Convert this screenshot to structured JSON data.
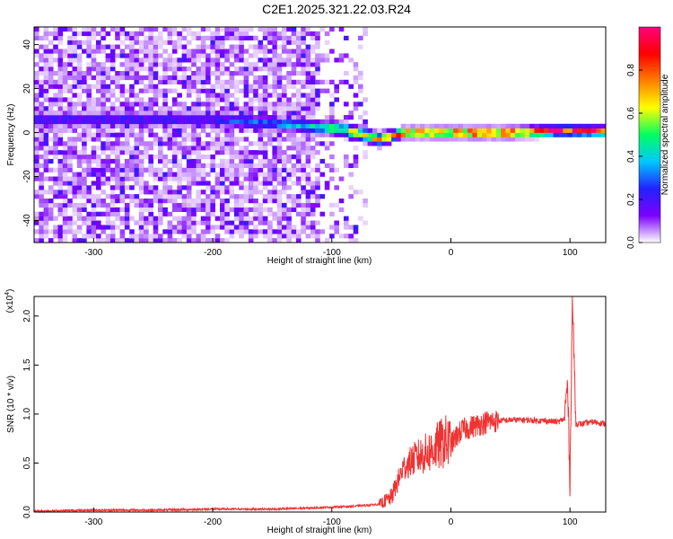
{
  "title": "C2E1.2025.321.22.03.R24",
  "chart_data": [
    {
      "type": "heatmap",
      "title": "C2E1.2025.321.22.03.R24",
      "xlabel": "Height of straight line (km)",
      "ylabel": "Frequency (Hz)",
      "xlim": [
        -350,
        130
      ],
      "ylim": [
        -50,
        48
      ],
      "xticks": [
        -300,
        -200,
        -100,
        0,
        100
      ],
      "yticks": [
        -40,
        -20,
        0,
        20,
        40
      ],
      "colorbar": {
        "label": "Normalized spectral amplitude",
        "range": [
          0,
          1
        ],
        "ticks": [
          "0.0",
          "0.2",
          "0.4",
          "0.6",
          "0.8"
        ],
        "colors": [
          "#ffffff",
          "#7b00ff",
          "#2222ff",
          "#00c8ff",
          "#00ff60",
          "#ffff00",
          "#ff7f00",
          "#ff0000",
          "#ff0080"
        ]
      },
      "ridge": [
        {
          "x": -200,
          "f": 6,
          "amp": 0.22
        },
        {
          "x": -170,
          "f": 5,
          "amp": 0.32
        },
        {
          "x": -120,
          "f": 3,
          "amp": 0.38
        },
        {
          "x": -90,
          "f": 1.5,
          "amp": 0.55
        },
        {
          "x": -60,
          "f": -3,
          "amp": 0.65
        },
        {
          "x": -40,
          "f": 0,
          "amp": 0.85
        },
        {
          "x": 0,
          "f": 0,
          "amp": 0.9
        },
        {
          "x": 50,
          "f": 0,
          "amp": 0.92
        },
        {
          "x": 95,
          "f": 1,
          "amp": 0.95
        },
        {
          "x": 130,
          "f": 0.5,
          "amp": 0.9
        }
      ]
    },
    {
      "type": "line",
      "xlabel": "Height of straight line (km)",
      "ylabel": "SNR (10 * v/v)",
      "yscale_label": "(x10",
      "yscale_exp": "4",
      "xlim": [
        -350,
        130
      ],
      "ylim": [
        0,
        2.2
      ],
      "xticks": [
        -300,
        -200,
        -100,
        0,
        100
      ],
      "yticks": [
        "0.0",
        "0.5",
        "1.0",
        "1.5",
        "2.0"
      ],
      "color": "#ee3333",
      "series": [
        {
          "x": [
            -350,
            -300,
            -250,
            -200,
            -150,
            -120,
            -100,
            -80,
            -60,
            -50,
            -45,
            -40,
            -30,
            -20,
            -10,
            -5,
            0,
            5,
            10,
            20,
            30,
            40,
            50,
            60,
            80,
            90,
            95,
            98,
            100,
            102,
            105,
            110,
            120,
            130
          ],
          "y": [
            0.01,
            0.02,
            0.02,
            0.03,
            0.03,
            0.04,
            0.05,
            0.06,
            0.08,
            0.15,
            0.3,
            0.45,
            0.55,
            0.6,
            0.68,
            0.72,
            0.68,
            0.78,
            0.84,
            0.88,
            0.92,
            0.93,
            0.94,
            0.94,
            0.93,
            0.92,
            0.95,
            1.3,
            0.3,
            2.2,
            0.9,
            0.9,
            0.92,
            0.9
          ]
        }
      ]
    }
  ]
}
